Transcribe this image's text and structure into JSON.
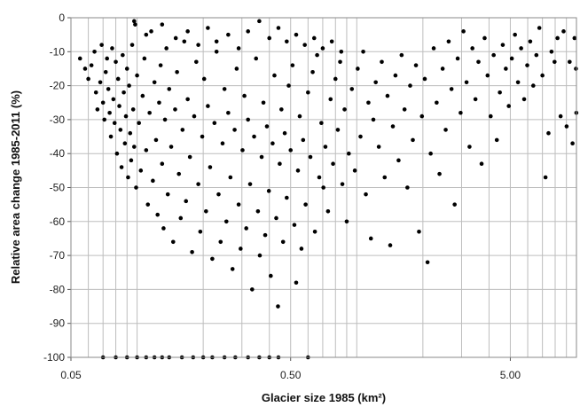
{
  "chart_data": {
    "type": "scatter",
    "xlabel": "Glacier size 1985 (km²)",
    "ylabel": "Relative area change 1985-2011 (%)",
    "x_scale": "log",
    "xlim": [
      0.05,
      10
    ],
    "ylim": [
      -100,
      0
    ],
    "grid": true,
    "x_tick_labels": [
      {
        "value": 0.05,
        "label": "0.05"
      },
      {
        "value": 0.5,
        "label": "0.50"
      },
      {
        "value": 5,
        "label": "5.00"
      }
    ],
    "y_ticks": [
      0,
      -10,
      -20,
      -30,
      -40,
      -50,
      -60,
      -70,
      -80,
      -90,
      -100
    ],
    "marker_color": "#000000",
    "series": [
      {
        "points": [
          [
            0.055,
            -12
          ],
          [
            0.058,
            -15
          ],
          [
            0.06,
            -18
          ],
          [
            0.062,
            -14
          ],
          [
            0.064,
            -10
          ],
          [
            0.065,
            -22
          ],
          [
            0.066,
            -27
          ],
          [
            0.068,
            -19
          ],
          [
            0.069,
            -8
          ],
          [
            0.07,
            -25
          ],
          [
            0.071,
            -30
          ],
          [
            0.072,
            -16
          ],
          [
            0.073,
            -12
          ],
          [
            0.074,
            -21
          ],
          [
            0.075,
            -28
          ],
          [
            0.076,
            -35
          ],
          [
            0.077,
            -9
          ],
          [
            0.078,
            -24
          ],
          [
            0.079,
            -31
          ],
          [
            0.08,
            -13
          ],
          [
            0.081,
            -40
          ],
          [
            0.082,
            -18
          ],
          [
            0.083,
            -26
          ],
          [
            0.084,
            -33
          ],
          [
            0.085,
            -44
          ],
          [
            0.086,
            -11
          ],
          [
            0.087,
            -22
          ],
          [
            0.088,
            -37
          ],
          [
            0.089,
            -29
          ],
          [
            0.09,
            -15
          ],
          [
            0.091,
            -47
          ],
          [
            0.092,
            -20
          ],
          [
            0.093,
            -34
          ],
          [
            0.094,
            -42
          ],
          [
            0.095,
            -8
          ],
          [
            0.096,
            -27
          ],
          [
            0.097,
            -38
          ],
          [
            0.098,
            -2
          ],
          [
            0.099,
            -50
          ],
          [
            0.1,
            -17
          ],
          [
            0.102,
            -31
          ],
          [
            0.104,
            -45
          ],
          [
            0.106,
            -23
          ],
          [
            0.108,
            -12
          ],
          [
            0.11,
            -39
          ],
          [
            0.112,
            -55
          ],
          [
            0.114,
            -28
          ],
          [
            0.116,
            -4
          ],
          [
            0.118,
            -48
          ],
          [
            0.12,
            -19
          ],
          [
            0.122,
            -36
          ],
          [
            0.124,
            -58
          ],
          [
            0.126,
            -25
          ],
          [
            0.128,
            -14
          ],
          [
            0.13,
            -43
          ],
          [
            0.132,
            -62
          ],
          [
            0.134,
            -30
          ],
          [
            0.136,
            -9
          ],
          [
            0.138,
            -52
          ],
          [
            0.14,
            -21
          ],
          [
            0.143,
            -38
          ],
          [
            0.146,
            -66
          ],
          [
            0.149,
            -27
          ],
          [
            0.152,
            -16
          ],
          [
            0.155,
            -46
          ],
          [
            0.158,
            -59
          ],
          [
            0.161,
            -33
          ],
          [
            0.164,
            -7
          ],
          [
            0.167,
            -54
          ],
          [
            0.17,
            -24
          ],
          [
            0.174,
            -41
          ],
          [
            0.178,
            -69
          ],
          [
            0.182,
            -29
          ],
          [
            0.186,
            -13
          ],
          [
            0.19,
            -49
          ],
          [
            0.194,
            -63
          ],
          [
            0.198,
            -35
          ],
          [
            0.202,
            -18
          ],
          [
            0.206,
            -57
          ],
          [
            0.21,
            -26
          ],
          [
            0.215,
            -44
          ],
          [
            0.22,
            -71
          ],
          [
            0.225,
            -31
          ],
          [
            0.23,
            -10
          ],
          [
            0.235,
            -52
          ],
          [
            0.24,
            -66
          ],
          [
            0.245,
            -37
          ],
          [
            0.25,
            -21
          ],
          [
            0.255,
            -60
          ],
          [
            0.26,
            -28
          ],
          [
            0.266,
            -47
          ],
          [
            0.272,
            -74
          ],
          [
            0.278,
            -33
          ],
          [
            0.284,
            -15
          ],
          [
            0.29,
            -55
          ],
          [
            0.296,
            -68
          ],
          [
            0.302,
            -39
          ],
          [
            0.308,
            -23
          ],
          [
            0.314,
            -62
          ],
          [
            0.32,
            -30
          ],
          [
            0.327,
            -49
          ],
          [
            0.334,
            -80
          ],
          [
            0.341,
            -35
          ],
          [
            0.348,
            -12
          ],
          [
            0.355,
            -57
          ],
          [
            0.362,
            -70
          ],
          [
            0.369,
            -41
          ],
          [
            0.376,
            -25
          ],
          [
            0.383,
            -64
          ],
          [
            0.39,
            -32
          ],
          [
            0.398,
            -51
          ],
          [
            0.406,
            -76
          ],
          [
            0.414,
            -37
          ],
          [
            0.422,
            -17
          ],
          [
            0.43,
            -59
          ],
          [
            0.438,
            -85
          ],
          [
            0.446,
            -43
          ],
          [
            0.454,
            -27
          ],
          [
            0.462,
            -66
          ],
          [
            0.47,
            -34
          ],
          [
            0.48,
            -53
          ],
          [
            0.49,
            -20
          ],
          [
            0.5,
            -39
          ],
          [
            0.51,
            -14
          ],
          [
            0.52,
            -61
          ],
          [
            0.53,
            -78
          ],
          [
            0.54,
            -45
          ],
          [
            0.55,
            -29
          ],
          [
            0.56,
            -68
          ],
          [
            0.57,
            -36
          ],
          [
            0.585,
            -55
          ],
          [
            0.6,
            -22
          ],
          [
            0.615,
            -41
          ],
          [
            0.63,
            -16
          ],
          [
            0.645,
            -63
          ],
          [
            0.66,
            -11
          ],
          [
            0.675,
            -47
          ],
          [
            0.69,
            -31
          ],
          [
            0.705,
            -50
          ],
          [
            0.72,
            -38
          ],
          [
            0.74,
            -57
          ],
          [
            0.76,
            -24
          ],
          [
            0.78,
            -43
          ],
          [
            0.8,
            -18
          ],
          [
            0.82,
            -33
          ],
          [
            0.84,
            -13
          ],
          [
            0.86,
            -49
          ],
          [
            0.88,
            -27
          ],
          [
            0.9,
            -60
          ],
          [
            0.92,
            -40
          ],
          [
            0.95,
            -21
          ],
          [
            0.98,
            -45
          ],
          [
            1.01,
            -15
          ],
          [
            1.04,
            -35
          ],
          [
            1.07,
            -10
          ],
          [
            1.1,
            -52
          ],
          [
            1.13,
            -25
          ],
          [
            1.16,
            -65
          ],
          [
            1.19,
            -30
          ],
          [
            1.22,
            -19
          ],
          [
            1.26,
            -38
          ],
          [
            1.3,
            -13
          ],
          [
            1.34,
            -47
          ],
          [
            1.38,
            -23
          ],
          [
            1.42,
            -67
          ],
          [
            1.46,
            -32
          ],
          [
            1.5,
            -17
          ],
          [
            1.55,
            -42
          ],
          [
            1.6,
            -11
          ],
          [
            1.65,
            -27
          ],
          [
            1.7,
            -50
          ],
          [
            1.75,
            -20
          ],
          [
            1.8,
            -36
          ],
          [
            1.86,
            -14
          ],
          [
            1.92,
            -63
          ],
          [
            1.98,
            -29
          ],
          [
            2.04,
            -18
          ],
          [
            2.1,
            -72
          ],
          [
            2.17,
            -40
          ],
          [
            2.24,
            -9
          ],
          [
            2.31,
            -25
          ],
          [
            2.38,
            -46
          ],
          [
            2.46,
            -15
          ],
          [
            2.54,
            -33
          ],
          [
            2.62,
            -7
          ],
          [
            2.7,
            -21
          ],
          [
            2.79,
            -55
          ],
          [
            2.88,
            -12
          ],
          [
            2.97,
            -28
          ],
          [
            3.06,
            -4
          ],
          [
            3.16,
            -19
          ],
          [
            3.26,
            -38
          ],
          [
            3.36,
            -9
          ],
          [
            3.47,
            -24
          ],
          [
            3.58,
            -13
          ],
          [
            3.7,
            -43
          ],
          [
            3.82,
            -6
          ],
          [
            3.94,
            -17
          ],
          [
            4.07,
            -29
          ],
          [
            4.2,
            -11
          ],
          [
            4.34,
            -36
          ],
          [
            4.48,
            -22
          ],
          [
            4.62,
            -8
          ],
          [
            4.77,
            -15
          ],
          [
            4.92,
            -26
          ],
          [
            5.08,
            -12
          ],
          [
            5.25,
            -5
          ],
          [
            5.42,
            -19
          ],
          [
            5.6,
            -9
          ],
          [
            5.78,
            -24
          ],
          [
            5.97,
            -14
          ],
          [
            6.16,
            -7
          ],
          [
            6.36,
            -20
          ],
          [
            6.57,
            -11
          ],
          [
            6.78,
            -3
          ],
          [
            7.0,
            -17
          ],
          [
            7.23,
            -47
          ],
          [
            7.46,
            -34
          ],
          [
            7.7,
            -10
          ],
          [
            7.95,
            -13
          ],
          [
            8.2,
            -6
          ],
          [
            8.47,
            -29
          ],
          [
            8.74,
            -4
          ],
          [
            9.02,
            -32
          ],
          [
            9.31,
            -13
          ],
          [
            9.6,
            -37
          ],
          [
            9.8,
            -6
          ],
          [
            9.95,
            -15
          ],
          [
            9.99,
            -28
          ],
          [
            0.097,
            -1
          ],
          [
            0.11,
            -5
          ],
          [
            0.13,
            -2
          ],
          [
            0.15,
            -6
          ],
          [
            0.17,
            -4
          ],
          [
            0.19,
            -8
          ],
          [
            0.21,
            -3
          ],
          [
            0.23,
            -7
          ],
          [
            0.26,
            -5
          ],
          [
            0.29,
            -9
          ],
          [
            0.32,
            -4
          ],
          [
            0.36,
            -1
          ],
          [
            0.4,
            -6
          ],
          [
            0.44,
            -3
          ],
          [
            0.48,
            -7
          ],
          [
            0.53,
            -5
          ],
          [
            0.58,
            -8
          ],
          [
            0.64,
            -6
          ],
          [
            0.7,
            -9
          ],
          [
            0.77,
            -7
          ],
          [
            0.85,
            -10
          ],
          [
            0.07,
            -100
          ],
          [
            0.08,
            -100
          ],
          [
            0.09,
            -100
          ],
          [
            0.1,
            -100
          ],
          [
            0.11,
            -100
          ],
          [
            0.12,
            -100
          ],
          [
            0.13,
            -100
          ],
          [
            0.14,
            -100
          ],
          [
            0.16,
            -100
          ],
          [
            0.18,
            -100
          ],
          [
            0.2,
            -100
          ],
          [
            0.22,
            -100
          ],
          [
            0.25,
            -100
          ],
          [
            0.28,
            -100
          ],
          [
            0.32,
            -100
          ],
          [
            0.36,
            -100
          ],
          [
            0.4,
            -100
          ],
          [
            0.44,
            -100
          ],
          [
            0.6,
            -100
          ]
        ]
      }
    ]
  }
}
